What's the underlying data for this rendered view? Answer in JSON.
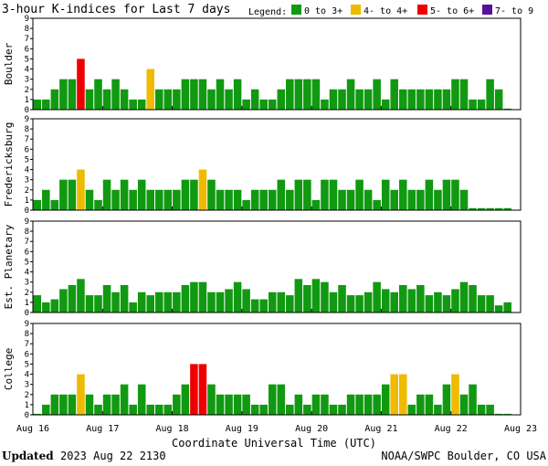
{
  "colors": {
    "low": "#119911",
    "mid": "#eebb00",
    "high": "#ee0000",
    "storm": "#551199",
    "frame": "#000000"
  },
  "chart_data": {
    "type": "bar",
    "title": "3-hour K-indices for Last 7 days",
    "legend": {
      "label": "Legend:",
      "items": [
        {
          "label": "0 to 3+",
          "color": "#119911"
        },
        {
          "label": "4- to 4+",
          "color": "#eebb00"
        },
        {
          "label": "5- to 6+",
          "color": "#ee0000"
        },
        {
          "label": "7- to 9",
          "color": "#551199"
        }
      ]
    },
    "xlabel": "Coordinate Universal Time (UTC)",
    "x_ticks": [
      "Aug 16",
      "Aug 17",
      "Aug 18",
      "Aug 19",
      "Aug 20",
      "Aug 21",
      "Aug 22",
      "Aug 23"
    ],
    "ylim": [
      0,
      9
    ],
    "y_ticks": [
      "0",
      "1",
      "2",
      "3",
      "4",
      "5",
      "6",
      "7",
      "8",
      "9"
    ],
    "series": [
      {
        "name": "Boulder",
        "values": [
          1,
          1,
          2,
          3,
          3,
          5,
          2,
          3,
          2,
          3,
          2,
          1,
          1,
          4,
          2,
          2,
          2,
          3,
          3,
          3,
          2,
          3,
          2,
          3,
          1,
          2,
          1,
          1,
          2,
          3,
          3,
          3,
          3,
          1,
          2,
          2,
          3,
          2,
          2,
          3,
          1,
          3,
          2,
          2,
          2,
          2,
          2,
          2,
          3,
          3,
          1,
          1,
          3,
          2,
          0.1,
          null
        ]
      },
      {
        "name": "Fredericksburg",
        "values": [
          1,
          2,
          1,
          3,
          3,
          4,
          2,
          1,
          3,
          2,
          3,
          2,
          3,
          2,
          2,
          2,
          2,
          3,
          3,
          4,
          3,
          2,
          2,
          2,
          1,
          2,
          2,
          2,
          3,
          2,
          3,
          3,
          1,
          3,
          3,
          2,
          2,
          3,
          2,
          1,
          3,
          2,
          3,
          2,
          2,
          3,
          2,
          3,
          3,
          2,
          0.2,
          0.2,
          0.2,
          0.2,
          0.2,
          null
        ]
      },
      {
        "name": "Est. Planetary",
        "values": [
          1.7,
          1,
          1.3,
          2.3,
          2.7,
          3.3,
          1.7,
          1.7,
          2.7,
          2,
          2.7,
          1,
          2,
          1.7,
          2,
          2,
          2,
          2.7,
          3,
          3,
          2,
          2,
          2.3,
          3,
          2.3,
          1.3,
          1.3,
          2,
          2,
          1.7,
          3.3,
          2.7,
          3.3,
          3,
          2,
          2.7,
          1.7,
          1.7,
          2,
          3,
          2.3,
          2,
          2.7,
          2.3,
          2.7,
          1.7,
          2,
          1.7,
          2.3,
          3,
          2.7,
          1.7,
          1.7,
          0.7,
          1,
          null
        ]
      },
      {
        "name": "College",
        "values": [
          0.1,
          1,
          2,
          2,
          2,
          4,
          2,
          1,
          2,
          2,
          3,
          1,
          3,
          1,
          1,
          1,
          2,
          3,
          5,
          5,
          3,
          2,
          2,
          2,
          2,
          1,
          1,
          3,
          3,
          1,
          2,
          1,
          2,
          2,
          1,
          1,
          2,
          2,
          2,
          2,
          3,
          4,
          4,
          1,
          2,
          2,
          1,
          3,
          4,
          2,
          3,
          1,
          1,
          0.1,
          0.1,
          null
        ]
      }
    ]
  },
  "footer": {
    "updated_label": "Updated",
    "updated_value": "2023 Aug 22 2130",
    "credit": "NOAA/SWPC Boulder, CO USA"
  }
}
